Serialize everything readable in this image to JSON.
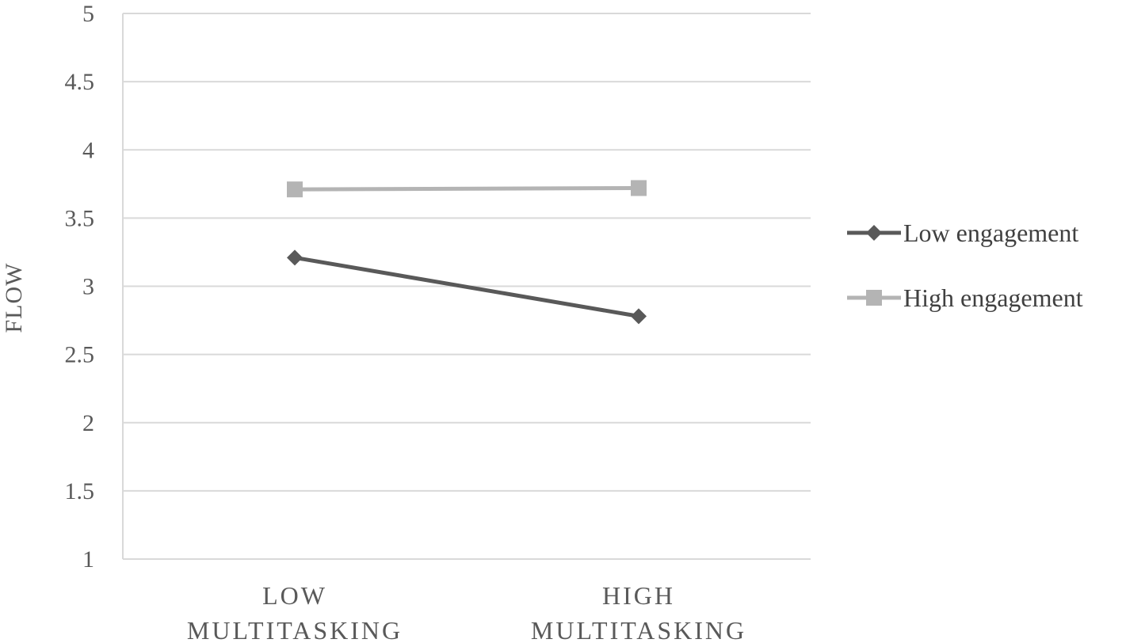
{
  "chart_data": {
    "type": "line",
    "categories": [
      [
        "LOW",
        "MULTITASKING"
      ],
      [
        "HIGH",
        "MULTITASKING"
      ]
    ],
    "series": [
      {
        "name": "Low engagement",
        "values": [
          3.21,
          2.78
        ],
        "color": "#595959",
        "marker": "diamond"
      },
      {
        "name": "High engagement",
        "values": [
          3.71,
          3.72
        ],
        "color": "#b4b4b4",
        "marker": "square"
      }
    ],
    "title": "",
    "xlabel": "",
    "ylabel": "FLOW",
    "ylim": [
      1,
      5
    ],
    "yticks": [
      "1",
      "1.5",
      "2",
      "2.5",
      "3",
      "3.5",
      "4",
      "4.5",
      "5"
    ],
    "grid": true,
    "legend_position": "right"
  }
}
